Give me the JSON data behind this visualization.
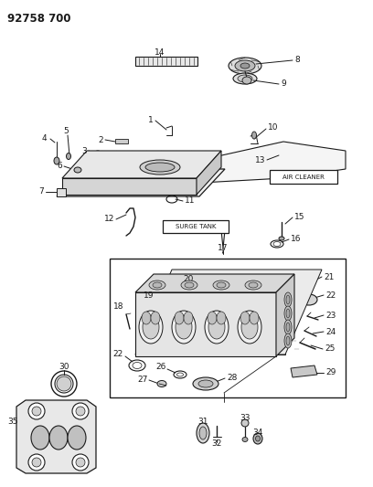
{
  "title": "92758 700",
  "bg_color": "#ffffff",
  "line_color": "#1a1a1a",
  "figsize": [
    4.08,
    5.33
  ],
  "dpi": 100,
  "gray_light": "#cccccc",
  "gray_mid": "#aaaaaa",
  "gray_dark": "#888888"
}
